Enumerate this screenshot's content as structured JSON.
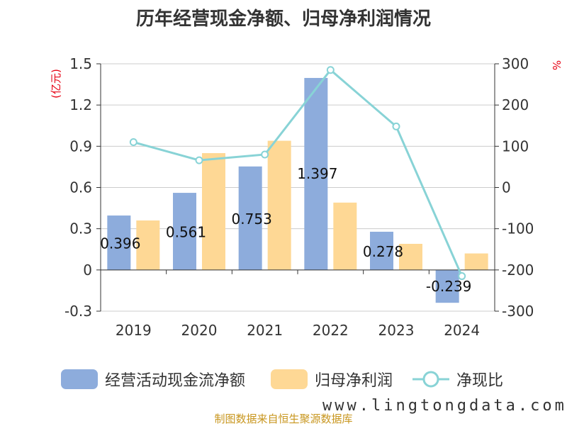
{
  "page": {
    "title": "历年经营现金净额、归母净利润情况",
    "footer": "制图数据来自恒生聚源数据库",
    "watermark": "www.lingtongdata.com"
  },
  "colors": {
    "cash_flow": "#8dacdc",
    "net_profit": "#fed895",
    "ratio_line": "#88d3d6",
    "grid": "#cccccc",
    "axis": "#333333",
    "unit": "#e60012"
  },
  "chart_data": {
    "type": "bar+line",
    "title": "历年经营现金净额、归母净利润情况",
    "categories": [
      "2019",
      "2020",
      "2021",
      "2022",
      "2023",
      "2024"
    ],
    "y_left": {
      "unit": "(亿元)",
      "range": [
        -0.3,
        1.5
      ],
      "ticks": [
        "1.5",
        "1.2",
        "0.9",
        "0.6",
        "0.3",
        "0",
        "-0.3"
      ],
      "tick_values": [
        1.5,
        1.2,
        0.9,
        0.6,
        0.3,
        0,
        -0.3
      ]
    },
    "y_right": {
      "unit": "%",
      "range": [
        -300,
        300
      ],
      "ticks": [
        "300",
        "200",
        "100",
        "0",
        "-100",
        "-200",
        "-300"
      ],
      "tick_values": [
        300,
        200,
        100,
        0,
        -100,
        -200,
        -300
      ]
    },
    "grid": true,
    "legend_position": "bottom",
    "series": [
      {
        "name": "经营活动现金流净额",
        "type": "bar",
        "axis": "left",
        "values": [
          0.396,
          0.561,
          0.753,
          1.397,
          0.278,
          -0.239
        ],
        "labels": [
          "0.396",
          "0.561",
          "0.753",
          "1.397",
          "0.278",
          "-0.239"
        ]
      },
      {
        "name": "归母净利润",
        "type": "bar",
        "axis": "left",
        "values": [
          0.36,
          0.85,
          0.94,
          0.49,
          0.19,
          0.12
        ]
      },
      {
        "name": "净现比",
        "type": "line",
        "axis": "right",
        "values": [
          110,
          66,
          80,
          285,
          148,
          -215
        ]
      }
    ]
  }
}
